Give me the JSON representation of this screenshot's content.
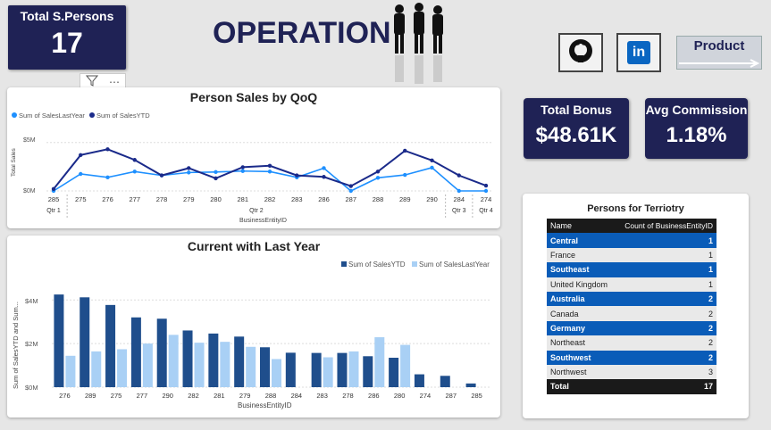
{
  "kpis": {
    "total_persons": {
      "label": "Total S.Persons",
      "value": "17"
    },
    "total_bonus": {
      "label": "Total Bonus",
      "value": "$48.61K"
    },
    "avg_commission": {
      "label": "Avg Commission",
      "value": "1.18%"
    }
  },
  "header": {
    "title": "OPERATION"
  },
  "nav": {
    "product_label": "Product"
  },
  "colors": {
    "navy": "#1f2255",
    "series_dark": "#1a2a8a",
    "series_light": "#1e90ff",
    "bar_dark": "#1f4e8c",
    "bar_light": "#a9d0f5",
    "table_blue": "#0a5cb8"
  },
  "toolbar": {
    "filter_icon": "filter-icon",
    "more_icon": "more-options-icon"
  },
  "line_chart": {
    "title": "Person Sales by QoQ",
    "legend": [
      "Sum of SalesLastYear",
      "Sum of SalesYTD"
    ],
    "ylabel": "Total Sales",
    "xlabel": "BusinessEntityID",
    "yticks": [
      "$5M",
      "$0M"
    ],
    "quarters": [
      "Qtr 1",
      "Qtr 2",
      "Qtr 3",
      "Qtr 4"
    ]
  },
  "bar_chart": {
    "title": "Current with Last Year",
    "legend": [
      "Sum of SalesYTD",
      "Sum of SalesLastYear"
    ],
    "ylabel": "Sum of SalesYTD and Sum...",
    "xlabel": "BusinessEntityID",
    "yticks": [
      "$4M",
      "$2M",
      "$0M"
    ]
  },
  "territory_table": {
    "title": "Persons for Terriotry",
    "columns": [
      "Name",
      "Count of BusinessEntityID"
    ],
    "rows": [
      {
        "name": "Central",
        "count": "1"
      },
      {
        "name": "France",
        "count": "1"
      },
      {
        "name": "Southeast",
        "count": "1"
      },
      {
        "name": "United Kingdom",
        "count": "1"
      },
      {
        "name": "Australia",
        "count": "2"
      },
      {
        "name": "Canada",
        "count": "2"
      },
      {
        "name": "Germany",
        "count": "2"
      },
      {
        "name": "Northeast",
        "count": "2"
      },
      {
        "name": "Southwest",
        "count": "2"
      },
      {
        "name": "Northwest",
        "count": "3"
      }
    ],
    "total": {
      "name": "Total",
      "count": "17"
    }
  },
  "chart_data": [
    {
      "type": "line",
      "title": "Person Sales by QoQ",
      "xlabel": "BusinessEntityID",
      "ylabel": "Total Sales",
      "x": [
        "285",
        "275",
        "276",
        "277",
        "278",
        "279",
        "280",
        "281",
        "282",
        "283",
        "286",
        "287",
        "288",
        "289",
        "290",
        "284",
        "274"
      ],
      "quarter_of_x": [
        "Qtr 1",
        "Qtr 2",
        "Qtr 2",
        "Qtr 2",
        "Qtr 2",
        "Qtr 2",
        "Qtr 2",
        "Qtr 2",
        "Qtr 2",
        "Qtr 2",
        "Qtr 2",
        "Qtr 2",
        "Qtr 2",
        "Qtr 2",
        "Qtr 2",
        "Qtr 3",
        "Qtr 4"
      ],
      "ylim": [
        0,
        7
      ],
      "series": [
        {
          "name": "Sum of SalesLastYear",
          "values": [
            0.0,
            1.75,
            1.4,
            2.0,
            1.6,
            1.9,
            1.95,
            2.05,
            2.0,
            1.4,
            2.35,
            0.0,
            1.35,
            1.65,
            2.4,
            0.0,
            0.0
          ]
        },
        {
          "name": "Sum of SalesYTD",
          "values": [
            0.2,
            3.7,
            4.3,
            3.2,
            1.6,
            2.35,
            1.3,
            2.45,
            2.6,
            1.6,
            1.45,
            0.5,
            2.0,
            4.15,
            3.15,
            1.6,
            0.55
          ]
        }
      ]
    },
    {
      "type": "bar",
      "title": "Current with Last Year",
      "xlabel": "BusinessEntityID",
      "ylabel": "Sum of SalesYTD and Sum...",
      "categories": [
        "276",
        "289",
        "275",
        "277",
        "290",
        "282",
        "281",
        "279",
        "288",
        "284",
        "283",
        "278",
        "286",
        "280",
        "274",
        "287",
        "285"
      ],
      "ylim": [
        0,
        4.5
      ],
      "series": [
        {
          "name": "Sum of SalesYTD",
          "values": [
            4.25,
            4.12,
            3.77,
            3.2,
            3.14,
            2.6,
            2.46,
            2.32,
            1.83,
            1.58,
            1.57,
            1.57,
            1.42,
            1.35,
            0.59,
            0.52,
            0.17
          ]
        },
        {
          "name": "Sum of SalesLastYear",
          "values": [
            1.44,
            1.64,
            1.74,
            2.0,
            2.4,
            2.04,
            2.08,
            1.85,
            1.29,
            0.0,
            1.37,
            1.64,
            2.29,
            1.94,
            0.0,
            0.0,
            0.0
          ]
        }
      ]
    }
  ]
}
